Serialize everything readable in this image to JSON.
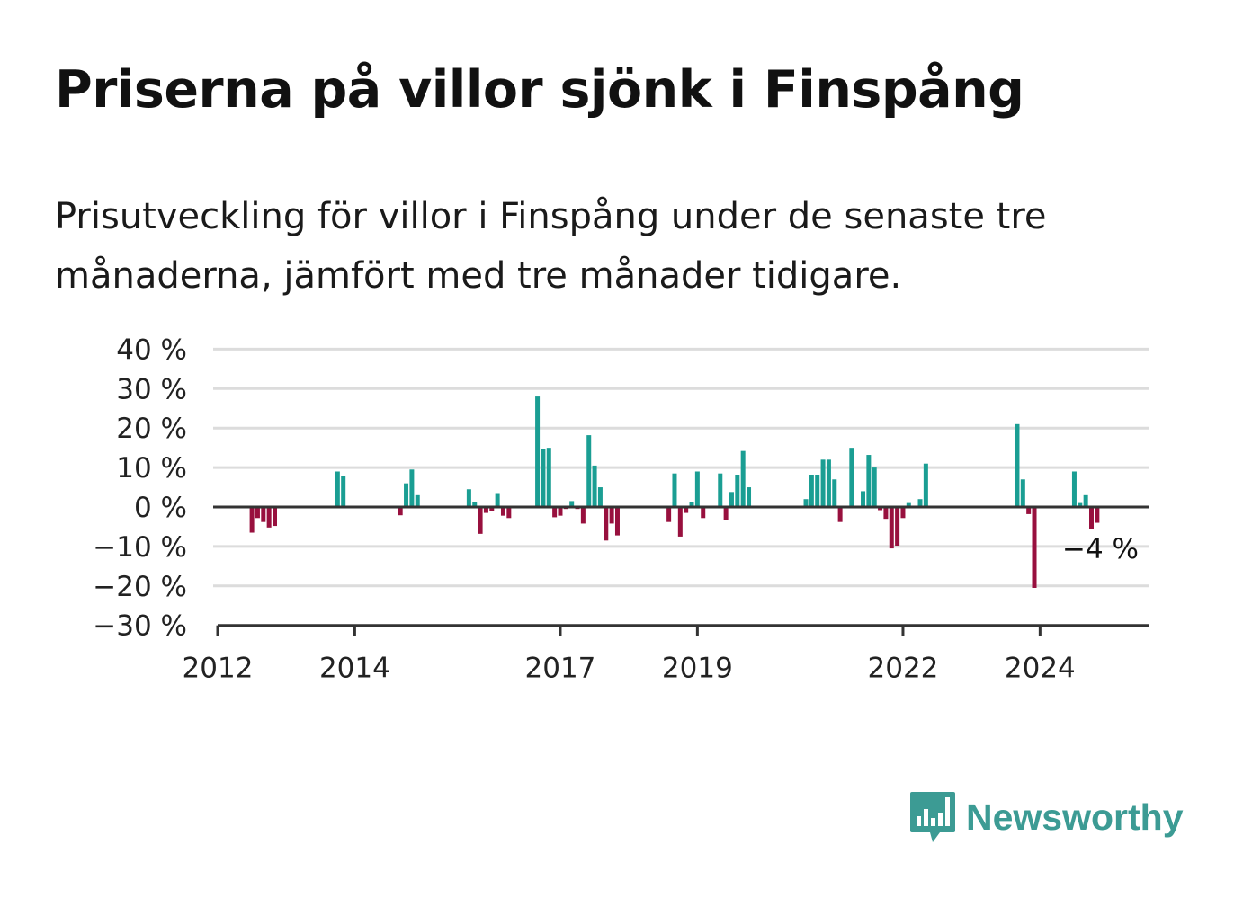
{
  "header": {
    "title": "Priserna på villor sjönk i Finspång",
    "subtitle": "Prisutveckling för villor i Finspång under de senaste tre månaderna, jämfört med tre månader tidigare."
  },
  "brand": {
    "name": "Newsworthy",
    "icon": "bar-chart-speech-bubble-icon",
    "color": "#3c9b94"
  },
  "colors": {
    "positive": "#1a9e93",
    "negative": "#98103e",
    "grid": "#dcdcdc",
    "axis": "#333333"
  },
  "chart_data": {
    "type": "bar",
    "title": "Priserna på villor sjönk i Finspång",
    "xlabel": "",
    "ylabel": "",
    "ylim": [
      -30,
      40
    ],
    "xlim": [
      "2012-01",
      "2025-08"
    ],
    "yticks": [
      40,
      30,
      20,
      10,
      0,
      -10,
      -20,
      -30
    ],
    "ytick_labels": [
      "40 %",
      "30 %",
      "20 %",
      "10 %",
      "0 %",
      "−10 %",
      "−20 %",
      "−30 %"
    ],
    "xtick_labels": [
      "2012",
      "2014",
      "2017",
      "2019",
      "2022",
      "2024"
    ],
    "grid": true,
    "last_value_label": "−4 %",
    "x": [
      "2012-07",
      "2012-08",
      "2012-09",
      "2012-10",
      "2012-11",
      "2013-10",
      "2013-11",
      "2014-09",
      "2014-10",
      "2014-11",
      "2014-12",
      "2015-09",
      "2015-10",
      "2015-11",
      "2015-12",
      "2016-01",
      "2016-02",
      "2016-03",
      "2016-04",
      "2016-09",
      "2016-10",
      "2016-11",
      "2016-12",
      "2017-01",
      "2017-02",
      "2017-03",
      "2017-04",
      "2017-05",
      "2017-06",
      "2017-07",
      "2017-08",
      "2017-09",
      "2017-10",
      "2017-11",
      "2018-08",
      "2018-09",
      "2018-10",
      "2018-11",
      "2018-12",
      "2019-01",
      "2019-02",
      "2019-05",
      "2019-06",
      "2019-07",
      "2019-08",
      "2019-09",
      "2019-10",
      "2020-08",
      "2020-09",
      "2020-10",
      "2020-11",
      "2020-12",
      "2021-01",
      "2021-02",
      "2021-04",
      "2021-06",
      "2021-07",
      "2021-08",
      "2021-09",
      "2021-10",
      "2021-11",
      "2021-12",
      "2022-01",
      "2022-02",
      "2022-03",
      "2022-04",
      "2022-05",
      "2023-09",
      "2023-10",
      "2023-11",
      "2023-12",
      "2024-07",
      "2024-08",
      "2024-09",
      "2024-10",
      "2024-11"
    ],
    "values": [
      -6.5,
      -2.8,
      -3.8,
      -5.2,
      -4.8,
      9,
      7.8,
      -2.1,
      6,
      9.5,
      3,
      4.5,
      1.3,
      -6.8,
      -1.5,
      -1,
      3.3,
      -2.2,
      -2.8,
      28,
      14.8,
      15,
      -2.6,
      -2.2,
      -0.5,
      1.5,
      -0.5,
      -4.2,
      18.2,
      10.5,
      5,
      -8.5,
      -4.2,
      -7.2,
      -3.8,
      8.5,
      -7.5,
      -1.5,
      1.2,
      9,
      -2.8,
      8.5,
      -3.2,
      3.8,
      8.2,
      14.2,
      5,
      2,
      8.2,
      8.2,
      12,
      12,
      7,
      -3.8,
      15,
      4,
      13.2,
      10,
      -0.8,
      -3,
      -10.5,
      -9.8,
      -2.8,
      1,
      -0.3,
      2,
      11,
      21,
      7,
      -1.8,
      -20.5,
      9,
      1,
      3,
      -5.5,
      -4
    ]
  }
}
